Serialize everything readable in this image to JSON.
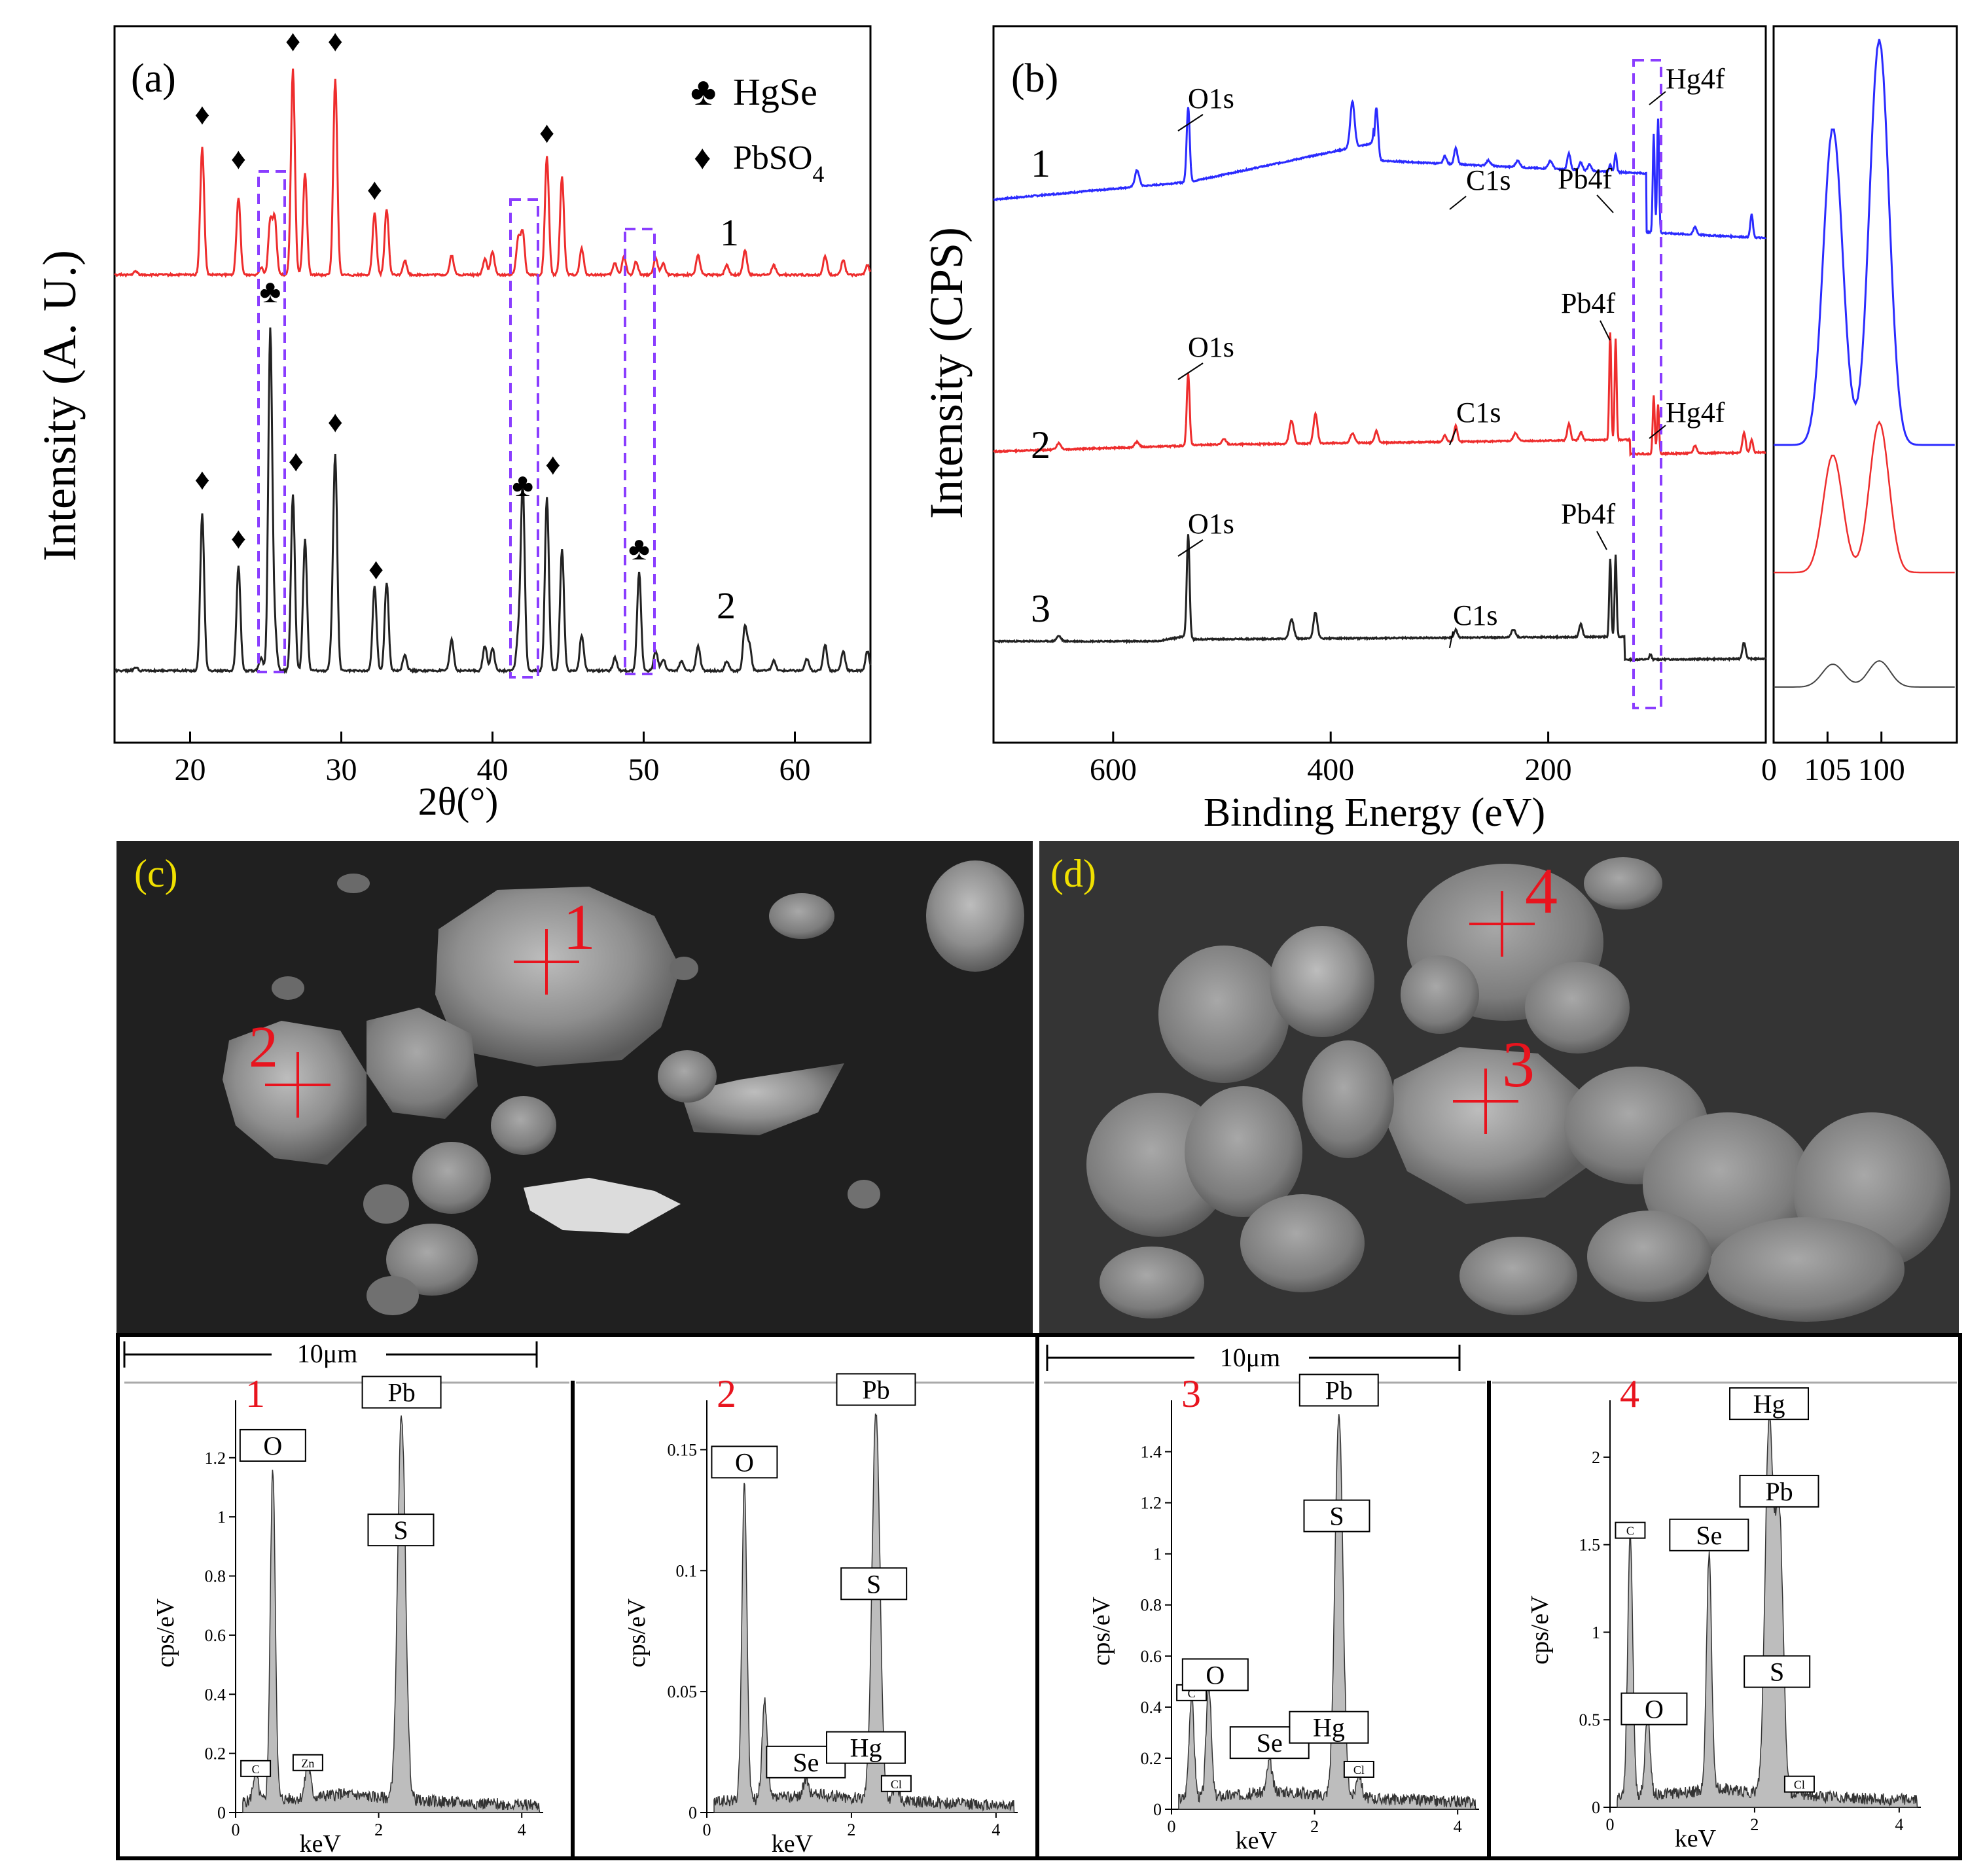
{
  "panel_a": {
    "label": "(a)",
    "ylabel": "Intensity (A. U.)",
    "xlabel": "2θ(°)",
    "x_ticks": [
      "20",
      "30",
      "40",
      "50",
      "60"
    ],
    "legend": {
      "hgse_symbol": "♣",
      "hgse": "HgSe",
      "pbso4_symbol": "♦",
      "pbso4": "PbSO4"
    },
    "curve_labels": [
      "1",
      "2"
    ],
    "diamond": "♦",
    "club": "♣"
  },
  "panel_b": {
    "label": "(b)",
    "ylabel": "Intensity (CPS)",
    "xlabel": "Binding Energy (eV)",
    "x_ticks": [
      "600",
      "400",
      "200",
      "0"
    ],
    "inset_ticks": [
      "105",
      "100"
    ],
    "curve_labels": [
      "1",
      "2",
      "3"
    ],
    "peak_labels": {
      "o1s": "O1s",
      "c1s": "C1s",
      "pb4f": "Pb4f",
      "hg4f": "Hg4f"
    }
  },
  "panel_c": {
    "label": "(c)",
    "points": [
      "1",
      "2"
    ],
    "scale": "10μm"
  },
  "panel_d": {
    "label": "(d)",
    "points": [
      "3",
      "4"
    ],
    "scale": "10μm"
  },
  "eds_common": {
    "ylabel": "cps/eV",
    "xlabel": "keV",
    "x_ticks": [
      "0",
      "2",
      "4"
    ]
  },
  "colors": {
    "curve1": "#2b2bff",
    "curve2": "#ee2d2d",
    "curve3": "#222222",
    "box": "#8a3dff",
    "point": "#e8141e"
  },
  "chart_data": [
    {
      "type": "line",
      "title": "(a)",
      "xlabel": "2θ(°)",
      "ylabel": "Intensity (A. U.)",
      "xlim": [
        15,
        65
      ],
      "series": [
        {
          "name": "1",
          "peaks_2theta": [
            20.8,
            23.2,
            25.4,
            26.8,
            27.6,
            29.6,
            32.2,
            33.0,
            41.8,
            43.6,
            44.6,
            49.5
          ]
        },
        {
          "name": "2",
          "peaks_2theta": [
            20.8,
            23.2,
            25.3,
            26.8,
            27.6,
            29.6,
            32.2,
            33.0,
            42.0,
            43.6,
            44.6,
            49.7
          ]
        }
      ],
      "legend": [
        "HgSe",
        "PbSO4"
      ]
    },
    {
      "type": "line",
      "title": "(b)",
      "xlabel": "Binding Energy (eV)",
      "ylabel": "Intensity (CPS)",
      "xlim": [
        700,
        0
      ],
      "series": [
        {
          "name": "1",
          "peaks_eV": [
            531,
            285,
            139,
            103,
            99
          ]
        },
        {
          "name": "2",
          "peaks_eV": [
            531,
            285,
            143,
            138,
            103,
            99
          ]
        },
        {
          "name": "3",
          "peaks_eV": [
            531,
            285,
            143,
            138
          ]
        }
      ],
      "inset_xlim": [
        108,
        95
      ]
    },
    {
      "type": "line",
      "title": "1",
      "xlabel": "keV",
      "ylabel": "cps/eV",
      "xlim": [
        0,
        4.3
      ],
      "ylim": [
        0,
        1.35
      ],
      "y_ticks": [
        0,
        0.2,
        0.4,
        0.6,
        0.8,
        1,
        1.2
      ],
      "peaks": [
        {
          "x": 0.28,
          "y": 0.1,
          "label": "C"
        },
        {
          "x": 0.52,
          "y": 1.12,
          "label": "O"
        },
        {
          "x": 1.01,
          "y": 0.12,
          "label": "Zn"
        },
        {
          "x": 2.32,
          "y": 1.3,
          "label": "Pb"
        },
        {
          "x": 2.31,
          "y": 1.0,
          "label": "S"
        }
      ]
    },
    {
      "type": "line",
      "title": "2",
      "xlabel": "keV",
      "ylabel": "cps/eV",
      "xlim": [
        0,
        4.3
      ],
      "ylim": [
        0,
        0.165
      ],
      "y_ticks": [
        0,
        0.05,
        0.1,
        0.15
      ],
      "peaks": [
        {
          "x": 0.52,
          "y": 0.13,
          "label": "O"
        },
        {
          "x": 0.8,
          "y": 0.04,
          "label": ""
        },
        {
          "x": 1.37,
          "y": 0.006,
          "label": "Se"
        },
        {
          "x": 2.2,
          "y": 0.012,
          "label": "Hg"
        },
        {
          "x": 2.34,
          "y": 0.16,
          "label": "Pb"
        },
        {
          "x": 2.31,
          "y": 0.1,
          "label": "S"
        },
        {
          "x": 2.62,
          "y": 0.006,
          "label": "Cl"
        }
      ]
    },
    {
      "type": "line",
      "title": "3",
      "xlabel": "keV",
      "ylabel": "cps/eV",
      "xlim": [
        0,
        4.3
      ],
      "ylim": [
        0,
        1.55
      ],
      "y_ticks": [
        0,
        0.2,
        0.4,
        0.6,
        0.8,
        1,
        1.2,
        1.4
      ],
      "peaks": [
        {
          "x": 0.28,
          "y": 0.4,
          "label": "C"
        },
        {
          "x": 0.52,
          "y": 0.45,
          "label": "O"
        },
        {
          "x": 1.37,
          "y": 0.12,
          "label": "Se"
        },
        {
          "x": 2.2,
          "y": 0.18,
          "label": "Hg"
        },
        {
          "x": 2.34,
          "y": 1.5,
          "label": "Pb"
        },
        {
          "x": 2.31,
          "y": 1.2,
          "label": "S"
        },
        {
          "x": 2.62,
          "y": 0.1,
          "label": "Cl"
        }
      ]
    },
    {
      "type": "line",
      "title": "4",
      "xlabel": "keV",
      "ylabel": "cps/eV",
      "xlim": [
        0,
        4.3
      ],
      "ylim": [
        0,
        2.25
      ],
      "y_ticks": [
        0,
        0.5,
        1,
        1.5,
        2
      ],
      "peaks": [
        {
          "x": 0.28,
          "y": 1.5,
          "label": "C"
        },
        {
          "x": 0.52,
          "y": 0.45,
          "label": "O"
        },
        {
          "x": 1.37,
          "y": 1.35,
          "label": "Se"
        },
        {
          "x": 2.2,
          "y": 2.1,
          "label": "Hg"
        },
        {
          "x": 2.34,
          "y": 1.6,
          "label": "Pb"
        },
        {
          "x": 2.31,
          "y": 0.85,
          "label": "S"
        },
        {
          "x": 2.62,
          "y": 0.05,
          "label": "Cl"
        }
      ]
    }
  ]
}
